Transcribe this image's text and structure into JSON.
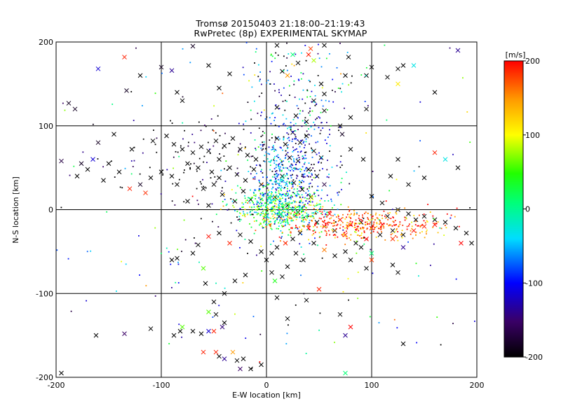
{
  "header": {
    "title_line1": "Tromsø 20150403 21:18:00–21:19:43",
    "title_line2": "RwPretec (8p) EXPERIMENTAL SKYMAP"
  },
  "colorbar": {
    "label": "[m/s]",
    "ticks": [
      "200",
      "100",
      "0",
      "-100",
      "-200"
    ],
    "tick_values": [
      200,
      100,
      0,
      -100,
      -200
    ],
    "range": [
      -200,
      200
    ],
    "colormap": "rainbow (black-purple-blue-cyan-green-yellow-red)"
  },
  "chart_data": {
    "type": "scatter",
    "title": "Tromsø 20150403 21:18:00–21:19:43",
    "subtitle": "RwPretec (8p) EXPERIMENTAL SKYMAP",
    "xlabel": "E-W location [km]",
    "ylabel": "N-S location [km]",
    "xlim": [
      -200,
      200
    ],
    "ylim": [
      -200,
      200
    ],
    "xticks": [
      "-200",
      "-100",
      "0",
      "100",
      "200"
    ],
    "yticks": [
      "200",
      "100",
      "0",
      "-100",
      "-200"
    ],
    "xtick_values": [
      -200,
      -100,
      0,
      100,
      200
    ],
    "ytick_values": [
      200,
      100,
      0,
      -100,
      -200
    ],
    "grid": true,
    "color_variable": "[m/s]",
    "markers": [
      "dot",
      "x"
    ],
    "cross_points": [
      [
        -188,
        127,
        -190
      ],
      [
        -182,
        120,
        -190
      ],
      [
        -195,
        58,
        -180
      ],
      [
        -176,
        55,
        -190
      ],
      [
        -160,
        168,
        -120
      ],
      [
        -135,
        182,
        190
      ],
      [
        -133,
        142,
        -190
      ],
      [
        -120,
        160,
        -200
      ],
      [
        -100,
        170,
        -190
      ],
      [
        -90,
        166,
        -150
      ],
      [
        -85,
        140,
        -200
      ],
      [
        -80,
        130,
        -200
      ],
      [
        -70,
        195,
        -190
      ],
      [
        -55,
        172,
        -200
      ],
      [
        -45,
        145,
        -200
      ],
      [
        -35,
        162,
        -200
      ],
      [
        -95,
        88,
        -200
      ],
      [
        -88,
        78,
        -200
      ],
      [
        -80,
        72,
        -200
      ],
      [
        -70,
        68,
        -200
      ],
      [
        -62,
        75,
        -200
      ],
      [
        -55,
        70,
        -200
      ],
      [
        -48,
        82,
        -200
      ],
      [
        -40,
        76,
        -200
      ],
      [
        -32,
        85,
        -200
      ],
      [
        -25,
        72,
        -200
      ],
      [
        -18,
        65,
        -200
      ],
      [
        -10,
        60,
        -200
      ],
      [
        -75,
        55,
        -200
      ],
      [
        -65,
        50,
        -200
      ],
      [
        -52,
        45,
        -200
      ],
      [
        -45,
        38,
        -200
      ],
      [
        -35,
        50,
        -200
      ],
      [
        -28,
        42,
        -200
      ],
      [
        -20,
        35,
        -200
      ],
      [
        -12,
        48,
        -200
      ],
      [
        -5,
        30,
        -200
      ],
      [
        -90,
        40,
        -200
      ],
      [
        -100,
        45,
        -200
      ],
      [
        -110,
        38,
        -200
      ],
      [
        -120,
        30,
        -190
      ],
      [
        -150,
        55,
        -200
      ],
      [
        -140,
        45,
        -200
      ],
      [
        -130,
        25,
        190
      ],
      [
        -115,
        20,
        185
      ],
      [
        -85,
        30,
        -200
      ],
      [
        -60,
        25,
        -200
      ],
      [
        -42,
        18,
        -200
      ],
      [
        -30,
        10,
        -200
      ],
      [
        -22,
        22,
        -200
      ],
      [
        -108,
        82,
        -200
      ],
      [
        -128,
        72,
        -200
      ],
      [
        -145,
        90,
        -200
      ],
      [
        -160,
        80,
        -190
      ],
      [
        -165,
        60,
        -120
      ],
      [
        -170,
        48,
        -200
      ],
      [
        -180,
        40,
        -200
      ],
      [
        -155,
        35,
        -200
      ],
      [
        -75,
        10,
        -200
      ],
      [
        -55,
        5,
        -200
      ],
      [
        -45,
        60,
        -200
      ],
      [
        -50,
        30,
        -200
      ],
      [
        -15,
        12,
        -200
      ],
      [
        10,
        85,
        -200
      ],
      [
        18,
        78,
        -200
      ],
      [
        25,
        92,
        -200
      ],
      [
        32,
        80,
        -200
      ],
      [
        38,
        88,
        -200
      ],
      [
        45,
        70,
        -200
      ],
      [
        52,
        62,
        -200
      ],
      [
        22,
        62,
        -200
      ],
      [
        30,
        58,
        -200
      ],
      [
        40,
        48,
        -200
      ],
      [
        48,
        40,
        -200
      ],
      [
        55,
        30,
        -180
      ],
      [
        15,
        40,
        -200
      ],
      [
        26,
        32,
        -200
      ],
      [
        34,
        24,
        -200
      ],
      [
        42,
        15,
        -200
      ],
      [
        8,
        15,
        -200
      ],
      [
        20,
        5,
        -200
      ],
      [
        30,
        -3,
        -200
      ],
      [
        12,
        -8,
        -200
      ],
      [
        38,
        105,
        -200
      ],
      [
        28,
        112,
        -200
      ],
      [
        45,
        130,
        -200
      ],
      [
        52,
        150,
        -200
      ],
      [
        55,
        138,
        -200
      ],
      [
        10,
        122,
        -200
      ],
      [
        20,
        160,
        150
      ],
      [
        55,
        118,
        -200
      ],
      [
        15,
        165,
        -200
      ],
      [
        30,
        175,
        -200
      ],
      [
        40,
        185,
        190
      ],
      [
        10,
        196,
        -200
      ],
      [
        55,
        196,
        -200
      ],
      [
        42,
        192,
        180
      ],
      [
        25,
        185,
        10
      ],
      [
        45,
        178,
        80
      ],
      [
        78,
        182,
        -200
      ],
      [
        100,
        170,
        -200
      ],
      [
        130,
        172,
        -200
      ],
      [
        125,
        168,
        -200
      ],
      [
        140,
        172,
        -30
      ],
      [
        182,
        190,
        -150
      ],
      [
        75,
        160,
        -200
      ],
      [
        95,
        160,
        -200
      ],
      [
        115,
        158,
        -200
      ],
      [
        125,
        150,
        110
      ],
      [
        160,
        140,
        -200
      ],
      [
        95,
        120,
        -200
      ],
      [
        80,
        110,
        -200
      ],
      [
        70,
        100,
        -200
      ],
      [
        72,
        90,
        -190
      ],
      [
        80,
        72,
        -200
      ],
      [
        92,
        60,
        -200
      ],
      [
        118,
        40,
        -200
      ],
      [
        125,
        60,
        -200
      ],
      [
        135,
        30,
        -200
      ],
      [
        150,
        38,
        -200
      ],
      [
        160,
        68,
        190
      ],
      [
        170,
        60,
        -30
      ],
      [
        182,
        50,
        -200
      ],
      [
        60,
        -5,
        200
      ],
      [
        70,
        -12,
        195
      ],
      [
        80,
        -18,
        200
      ],
      [
        90,
        -15,
        -200
      ],
      [
        100,
        -22,
        200
      ],
      [
        110,
        -18,
        195
      ],
      [
        120,
        -25,
        -200
      ],
      [
        130,
        -30,
        -200
      ],
      [
        140,
        -25,
        195
      ],
      [
        150,
        -20,
        190
      ],
      [
        160,
        -18,
        200
      ],
      [
        115,
        -8,
        -200
      ],
      [
        108,
        -30,
        -200
      ],
      [
        95,
        -35,
        200
      ],
      [
        85,
        -40,
        -200
      ],
      [
        75,
        -30,
        195
      ],
      [
        65,
        -25,
        -200
      ],
      [
        55,
        -20,
        200
      ],
      [
        48,
        -15,
        -200
      ],
      [
        40,
        -22,
        200
      ],
      [
        32,
        -28,
        -200
      ],
      [
        25,
        -35,
        -200
      ],
      [
        18,
        -40,
        190
      ],
      [
        10,
        -45,
        -200
      ],
      [
        5,
        -52,
        -200
      ],
      [
        0,
        -60,
        -200
      ],
      [
        -5,
        -50,
        -200
      ],
      [
        -15,
        -38,
        -200
      ],
      [
        -25,
        -30,
        -200
      ],
      [
        -35,
        -40,
        190
      ],
      [
        -45,
        -28,
        -200
      ],
      [
        -55,
        -32,
        195
      ],
      [
        -65,
        -42,
        -200
      ],
      [
        -70,
        -52,
        -200
      ],
      [
        -85,
        -58,
        -200
      ],
      [
        -90,
        -60,
        -200
      ],
      [
        120,
        -35,
        185
      ],
      [
        130,
        -45,
        -150
      ],
      [
        125,
        -75,
        -200
      ],
      [
        120,
        -66,
        -200
      ],
      [
        100,
        -60,
        180
      ],
      [
        95,
        -70,
        -200
      ],
      [
        100,
        -52,
        10
      ],
      [
        90,
        -45,
        -200
      ],
      [
        80,
        -60,
        -200
      ],
      [
        75,
        -50,
        -200
      ],
      [
        65,
        -55,
        -200
      ],
      [
        55,
        -48,
        160
      ],
      [
        45,
        -40,
        -200
      ],
      [
        35,
        -60,
        -200
      ],
      [
        28,
        -52,
        -200
      ],
      [
        20,
        -68,
        -200
      ],
      [
        15,
        -80,
        -200
      ],
      [
        5,
        -75,
        -200
      ],
      [
        8,
        -85,
        40
      ],
      [
        10,
        -105,
        -200
      ],
      [
        20,
        -130,
        -200
      ],
      [
        38,
        -108,
        -200
      ],
      [
        50,
        -95,
        190
      ],
      [
        70,
        -125,
        -200
      ],
      [
        75,
        -150,
        -150
      ],
      [
        80,
        -140,
        200
      ],
      [
        -20,
        -78,
        -200
      ],
      [
        -30,
        -85,
        -200
      ],
      [
        -40,
        -100,
        -200
      ],
      [
        -50,
        -110,
        -200
      ],
      [
        -58,
        -88,
        -200
      ],
      [
        -60,
        -70,
        60
      ],
      [
        -55,
        -122,
        60
      ],
      [
        -48,
        -125,
        -200
      ],
      [
        -40,
        -135,
        -200
      ],
      [
        -42,
        -140,
        -160
      ],
      [
        -50,
        -145,
        190
      ],
      [
        -55,
        -145,
        -120
      ],
      [
        -62,
        -148,
        -200
      ],
      [
        -70,
        -145,
        -200
      ],
      [
        -80,
        -140,
        60
      ],
      [
        -82,
        -145,
        -200
      ],
      [
        -88,
        -150,
        -200
      ],
      [
        -110,
        -142,
        -200
      ],
      [
        -135,
        -148,
        -170
      ],
      [
        -162,
        -150,
        -200
      ],
      [
        -60,
        -170,
        190
      ],
      [
        -48,
        -170,
        190
      ],
      [
        -45,
        -175,
        -200
      ],
      [
        -40,
        -178,
        -150
      ],
      [
        -32,
        -170,
        150
      ],
      [
        -28,
        -180,
        -200
      ],
      [
        -25,
        -190,
        -170
      ],
      [
        -22,
        -178,
        -200
      ],
      [
        -15,
        -190,
        -200
      ],
      [
        -5,
        -185,
        -200
      ],
      [
        75,
        -195,
        10
      ],
      [
        130,
        -160,
        -200
      ],
      [
        -195,
        -195,
        -200
      ],
      [
        100,
        16,
        -200
      ],
      [
        110,
        8,
        -200
      ],
      [
        125,
        0,
        -200
      ],
      [
        135,
        -5,
        -200
      ],
      [
        142,
        -12,
        -200
      ],
      [
        150,
        -8,
        -200
      ],
      [
        160,
        -12,
        -200
      ],
      [
        170,
        -15,
        -200
      ],
      [
        180,
        -22,
        -200
      ],
      [
        190,
        -28,
        -200
      ],
      [
        195,
        -40,
        -200
      ],
      [
        185,
        -40,
        200
      ]
    ]
  }
}
